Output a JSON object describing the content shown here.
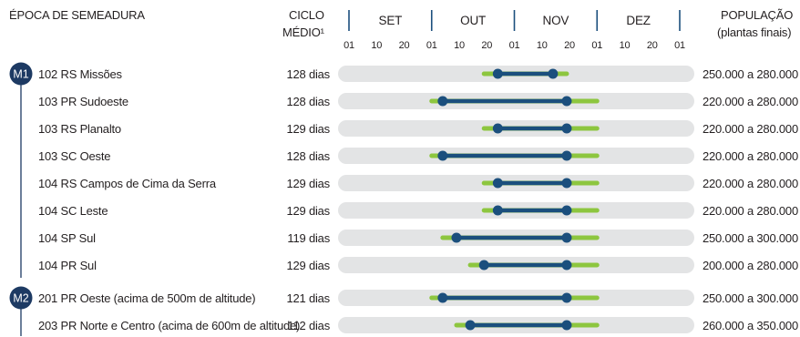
{
  "headers": {
    "epoca": "ÉPOCA DE SEMEADURA",
    "ciclo_line1": "CICLO",
    "ciclo_line2": "MÉDIO¹",
    "populacao_line1": "POPULAÇÃO",
    "populacao_line2": "(plantas finais)"
  },
  "chart_data": {
    "type": "gantt",
    "months": [
      "SET",
      "OUT",
      "NOV",
      "DEZ"
    ],
    "tick_labels": [
      "01",
      "10",
      "20",
      "01",
      "10",
      "20",
      "01",
      "10",
      "20",
      "01",
      "10",
      "20",
      "01"
    ],
    "groups": [
      {
        "badge": "M1",
        "start_row": 0,
        "end_row": 7
      },
      {
        "badge": "M2",
        "start_row": 8,
        "end_row": 9
      }
    ],
    "rows": [
      {
        "label": "102 RS Missões",
        "cycle": "128 dias",
        "population": "250.000 a 280.000",
        "tolerated": [
          "10-20",
          "11-20"
        ],
        "recommended": [
          "10-25",
          "11-15"
        ]
      },
      {
        "label": "103 PR Sudoeste",
        "cycle": "128 dias",
        "population": "220.000 a 280.000",
        "tolerated": [
          "10-01",
          "12-01"
        ],
        "recommended": [
          "10-05",
          "11-20"
        ]
      },
      {
        "label": "103 RS Planalto",
        "cycle": "129 dias",
        "population": "220.000 a 280.000",
        "tolerated": [
          "10-20",
          "12-01"
        ],
        "recommended": [
          "10-25",
          "11-20"
        ]
      },
      {
        "label": "103 SC Oeste",
        "cycle": "128 dias",
        "population": "220.000 a 280.000",
        "tolerated": [
          "10-01",
          "12-01"
        ],
        "recommended": [
          "10-05",
          "11-20"
        ]
      },
      {
        "label": "104 RS Campos de Cima da Serra",
        "cycle": "129 dias",
        "population": "220.000 a 280.000",
        "tolerated": [
          "10-20",
          "12-01"
        ],
        "recommended": [
          "10-25",
          "11-20"
        ]
      },
      {
        "label": "104 SC Leste",
        "cycle": "129 dias",
        "population": "220.000 a 280.000",
        "tolerated": [
          "10-20",
          "12-01"
        ],
        "recommended": [
          "10-25",
          "11-20"
        ]
      },
      {
        "label": "104 SP Sul",
        "cycle": "119 dias",
        "population": "250.000 a 300.000",
        "tolerated": [
          "10-05",
          "12-01"
        ],
        "recommended": [
          "10-10",
          "11-20"
        ]
      },
      {
        "label": "104 PR Sul",
        "cycle": "129 dias",
        "population": "200.000 a 280.000",
        "tolerated": [
          "10-15",
          "12-01"
        ],
        "recommended": [
          "10-20",
          "11-20"
        ]
      },
      {
        "label": "201 PR Oeste (acima de 500m de altitude)",
        "cycle": "121 dias",
        "population": "250.000 a 300.000",
        "tolerated": [
          "10-01",
          "12-01"
        ],
        "recommended": [
          "10-05",
          "11-20"
        ]
      },
      {
        "label": "203  PR Norte e Centro (acima de 600m de altitude)",
        "cycle": "112 dias",
        "population": "260.000 a 350.000",
        "tolerated": [
          "10-10",
          "12-01"
        ],
        "recommended": [
          "10-15",
          "11-20"
        ]
      }
    ]
  },
  "colors": {
    "track": "#e3e4e5",
    "tolerated": "#8dc63f",
    "recommended": "#1b4f7d",
    "badge": "#1d3a63",
    "divider": "#1b4f7d",
    "text": "#231f20"
  }
}
